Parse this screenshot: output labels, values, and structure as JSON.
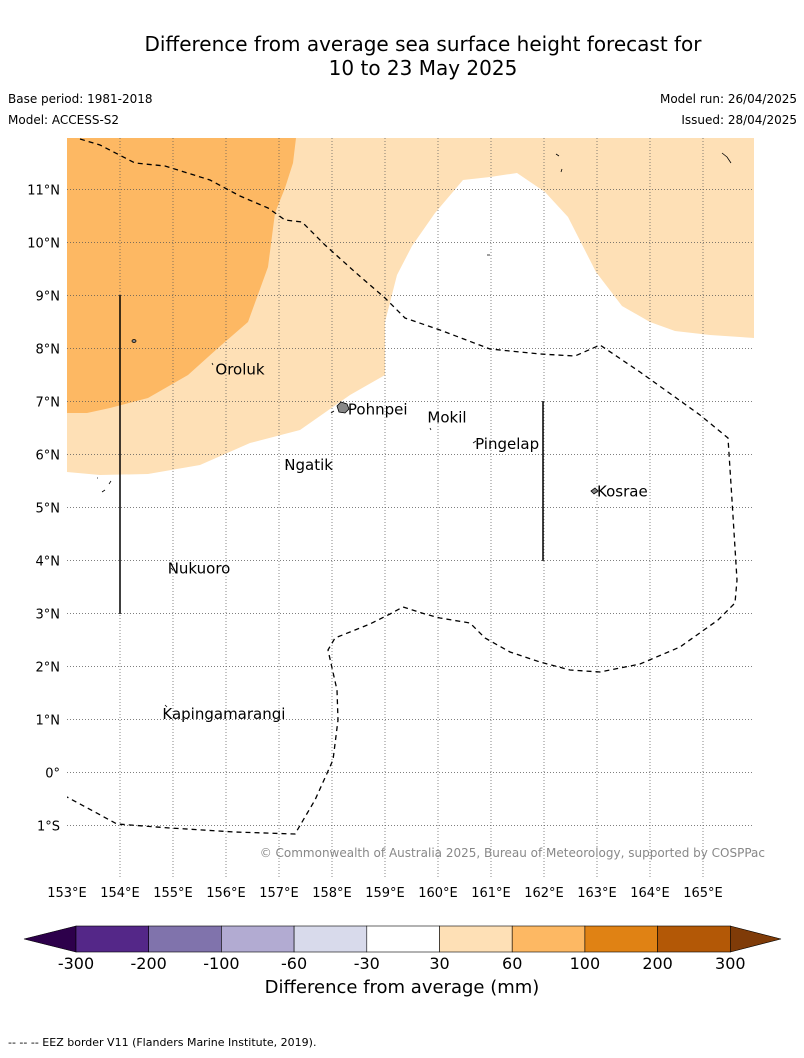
{
  "title_line1": "Difference from average sea surface height forecast for",
  "title_line2": "10 to 23 May 2025",
  "base_period": "Base period: 1981-2018",
  "model": "Model: ACCESS-S2",
  "model_run": "Model run: 26/04/2025",
  "issued": "Issued: 28/04/2025",
  "copyright": "© Commonwealth of Australia 2025, Bureau of Meteorology, supported by COSPPac",
  "footer": "--  --  -- EEZ border V11 (Flanders Marine Institute, 2019).",
  "colorbar_title": "Difference from average (mm)",
  "lat_labels": [
    "11°N",
    "10°N",
    "9°N",
    "8°N",
    "7°N",
    "6°N",
    "5°N",
    "4°N",
    "3°N",
    "2°N",
    "1°N",
    "0°",
    "1°S"
  ],
  "lon_labels": [
    "153°E",
    "154°E",
    "155°E",
    "156°E",
    "157°E",
    "158°E",
    "159°E",
    "160°E",
    "161°E",
    "162°E",
    "163°E",
    "164°E",
    "165°E"
  ],
  "places": [
    {
      "name": "Oroluk",
      "lon": 155.8,
      "lat": 7.6
    },
    {
      "name": "Pohnpei",
      "lon": 158.3,
      "lat": 6.85
    },
    {
      "name": "Mokil",
      "lon": 159.8,
      "lat": 6.7
    },
    {
      "name": "Pingelap",
      "lon": 160.7,
      "lat": 6.2
    },
    {
      "name": "Ngatik",
      "lon": 157.1,
      "lat": 5.8
    },
    {
      "name": "Kosrae",
      "lon": 163.0,
      "lat": 5.3
    },
    {
      "name": "Nukuoro",
      "lon": 154.9,
      "lat": 3.85
    },
    {
      "name": "Kapingamarangi",
      "lon": 154.8,
      "lat": 1.1
    }
  ],
  "colorbar": {
    "ticks": [
      "-300",
      "-200",
      "-100",
      "-60",
      "-30",
      "30",
      "60",
      "100",
      "200",
      "300"
    ],
    "colors": [
      "#542788",
      "#8073ac",
      "#b2abd2",
      "#d8daeb",
      "#ffffff",
      "#fee0b6",
      "#fdb863",
      "#e08214",
      "#b35806"
    ],
    "under_color": "#2d004b",
    "over_color": "#7f3b08"
  },
  "colors": {
    "light_orange": "#fee0b6",
    "mid_orange": "#fdb863"
  }
}
